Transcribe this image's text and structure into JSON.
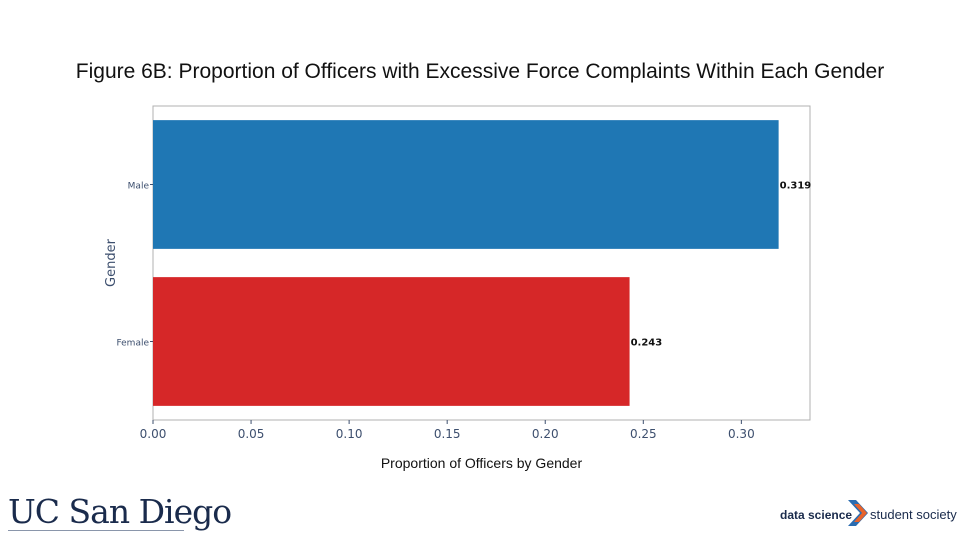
{
  "chart_data": {
    "type": "bar",
    "orientation": "horizontal",
    "title": "Figure 6B: Proportion of Officers with Excessive Force Complaints Within Each Gender",
    "xlabel": "Proportion of Officers by Gender",
    "ylabel": "Gender",
    "categories": [
      "Male",
      "Female"
    ],
    "values": [
      0.319,
      0.243
    ],
    "value_labels": [
      "0.319",
      "0.243"
    ],
    "bar_colors": [
      "#1f77b4",
      "#d62728"
    ],
    "xlim": [
      0.0,
      0.335
    ],
    "xticks": [
      0.0,
      0.05,
      0.1,
      0.15,
      0.2,
      0.25,
      0.3
    ],
    "xtick_labels": [
      "0.00",
      "0.05",
      "0.10",
      "0.15",
      "0.20",
      "0.25",
      "0.30"
    ],
    "grid": false,
    "legend": "none"
  },
  "logos": {
    "ucsd": "UC San Diego",
    "dsss_left": "data science",
    "dsss_right": "student society"
  },
  "colors": {
    "axis_text": "#3d4f6e",
    "frame": "#b0b0b0",
    "chevron_blue": "#2b6cb0",
    "chevron_orange": "#e8632b"
  }
}
